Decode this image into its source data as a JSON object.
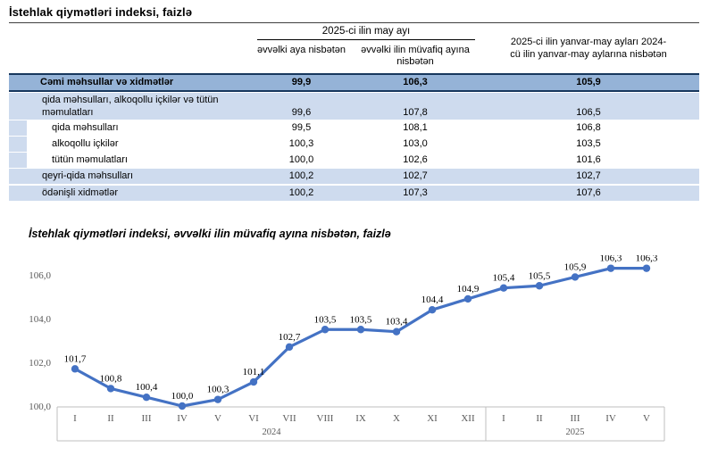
{
  "colors": {
    "total-bg": "#95B3D7",
    "light-bg": "#CEDBEE",
    "dark-border": "#17375D",
    "accent": "#4472C4",
    "axis-line": "#BFBFBF",
    "axis-text": "#595959"
  },
  "table": {
    "title": "İstehlak qiymətləri indeksi, faizlə",
    "col_group_header": "2025-ci ilin may ayı",
    "col1_header": "əvvəlki aya nisbətən",
    "col2_header": "əvvəlki ilin müvafiq ayına nisbətən",
    "col3_header": "2025-ci ilin yanvar-may ayları 2024-cü ilin yanvar-may aylarına nisbətən",
    "rows": [
      {
        "label": "Cəmi məhsullar və xidmətlər",
        "values": [
          "99,9",
          "106,3",
          "105,9"
        ]
      },
      {
        "label": "qida məhsulları, alkoqollu içkilər və tütün məmulatları",
        "values": [
          "99,6",
          "107,8",
          "106,5"
        ]
      },
      {
        "label": "qida məhsulları",
        "values": [
          "99,5",
          "108,1",
          "106,8"
        ]
      },
      {
        "label": "alkoqollu içkilər",
        "values": [
          "100,3",
          "103,0",
          "103,5"
        ]
      },
      {
        "label": "tütün məmulatları",
        "values": [
          "100,0",
          "102,6",
          "101,6"
        ]
      },
      {
        "label": "qeyri-qida məhsulları",
        "values": [
          "100,2",
          "102,7",
          "102,7"
        ]
      },
      {
        "label": "ödənişli xidmətlər",
        "values": [
          "100,2",
          "107,3",
          "107,6"
        ]
      }
    ]
  },
  "chart_data": {
    "type": "line",
    "title": "İstehlak qiymətləri indeksi, əvvəlki ilin müvafiq ayına nisbətən, faizlə",
    "x_groups": [
      {
        "year": "2024",
        "months": [
          "I",
          "II",
          "III",
          "IV",
          "V",
          "VI",
          "VII",
          "VIII",
          "IX",
          "X",
          "XI",
          "XII"
        ]
      },
      {
        "year": "2025",
        "months": [
          "I",
          "II",
          "III",
          "IV",
          "V"
        ]
      }
    ],
    "values": [
      101.7,
      100.8,
      100.4,
      100.0,
      100.3,
      101.1,
      102.7,
      103.5,
      103.5,
      103.4,
      104.4,
      104.9,
      105.4,
      105.5,
      105.9,
      106.3,
      106.3
    ],
    "labels": [
      "101,7",
      "100,8",
      "100,4",
      "100,0",
      "100,3",
      "101,1",
      "102,7",
      "103,5",
      "103,5",
      "103,4",
      "104,4",
      "104,9",
      "105,4",
      "105,5",
      "105,9",
      "106,3",
      "106,3"
    ],
    "yticks": [
      {
        "value": 100,
        "label": "100,0"
      },
      {
        "value": 102,
        "label": "102,0"
      },
      {
        "value": 104,
        "label": "104,0"
      },
      {
        "value": 106,
        "label": "106,0"
      }
    ],
    "ylim": [
      100,
      107
    ],
    "grid": false,
    "legend": false,
    "line_color": "#4472C4"
  }
}
